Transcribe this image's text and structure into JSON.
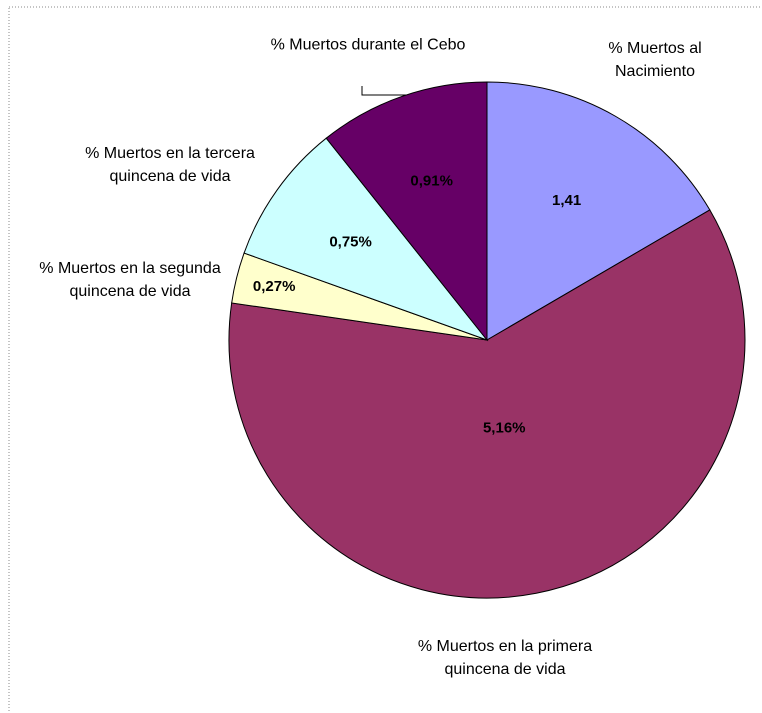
{
  "chart_data": {
    "type": "pie",
    "categories": [
      "% Muertos al Nacimiento",
      "% Muertos en la primera quincena de vida",
      "% Muertos en la segunda quincena de vida",
      "% Muertos en la tercera quincena de vida",
      "% Muertos durante el Cebo"
    ],
    "values": [
      1.41,
      5.16,
      0.27,
      0.75,
      0.91
    ],
    "value_labels": [
      "1,41",
      "5,16%",
      "0,27%",
      "0,75%",
      "0,91%"
    ],
    "colors": [
      "#9999ff",
      "#993366",
      "#ffffcc",
      "#ccffff",
      "#660066"
    ]
  }
}
